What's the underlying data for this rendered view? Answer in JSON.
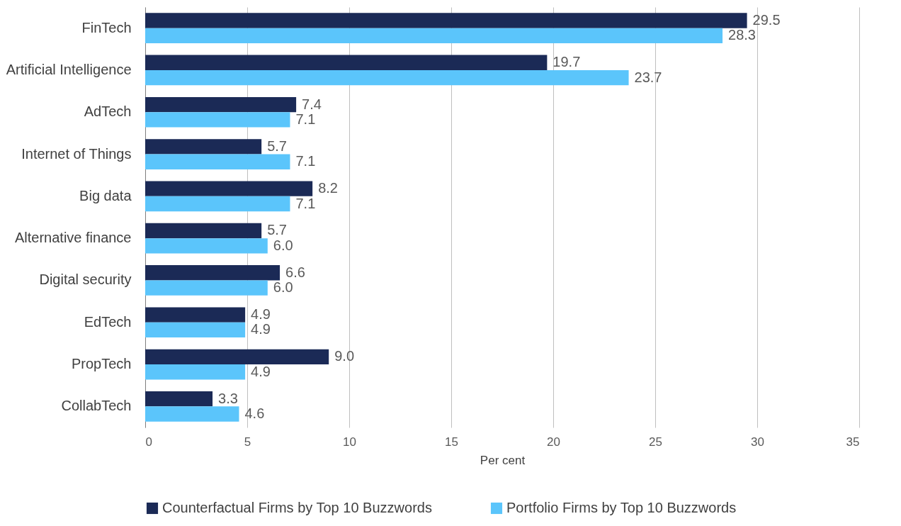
{
  "chart_data": {
    "type": "bar",
    "orientation": "horizontal",
    "xlabel": "Per cent",
    "categories": [
      "FinTech",
      "Artificial Intelligence",
      "AdTech",
      "Internet of Things",
      "Big data",
      "Alternative finance",
      "Digital security",
      "EdTech",
      "PropTech",
      "CollabTech"
    ],
    "series": [
      {
        "name": "Counterfactual Firms by Top 10 Buzzwords",
        "color": "#1b2a56",
        "values": [
          29.5,
          19.7,
          7.4,
          5.7,
          8.2,
          5.7,
          6.6,
          4.9,
          9.0,
          3.3
        ],
        "value_labels": [
          "29.5",
          "19.7",
          "7.4",
          "5.7",
          "8.2",
          "5.7",
          "6.6",
          "4.9",
          "9.0",
          "3.3"
        ]
      },
      {
        "name": "Portfolio Firms by Top 10 Buzzwords",
        "color": "#5bc5fb",
        "values": [
          28.3,
          23.7,
          7.1,
          7.1,
          7.1,
          6.0,
          6.0,
          4.9,
          4.9,
          4.6
        ],
        "value_labels": [
          "28.3",
          "23.7",
          "7.1",
          "7.1",
          "7.1",
          "6.0",
          "6.0",
          "4.9",
          "4.9",
          "4.6"
        ]
      }
    ],
    "xlim": [
      0,
      35
    ],
    "xticks": [
      0,
      5,
      10,
      15,
      20,
      25,
      30,
      35
    ],
    "grid": "x",
    "legend": "bottom"
  }
}
